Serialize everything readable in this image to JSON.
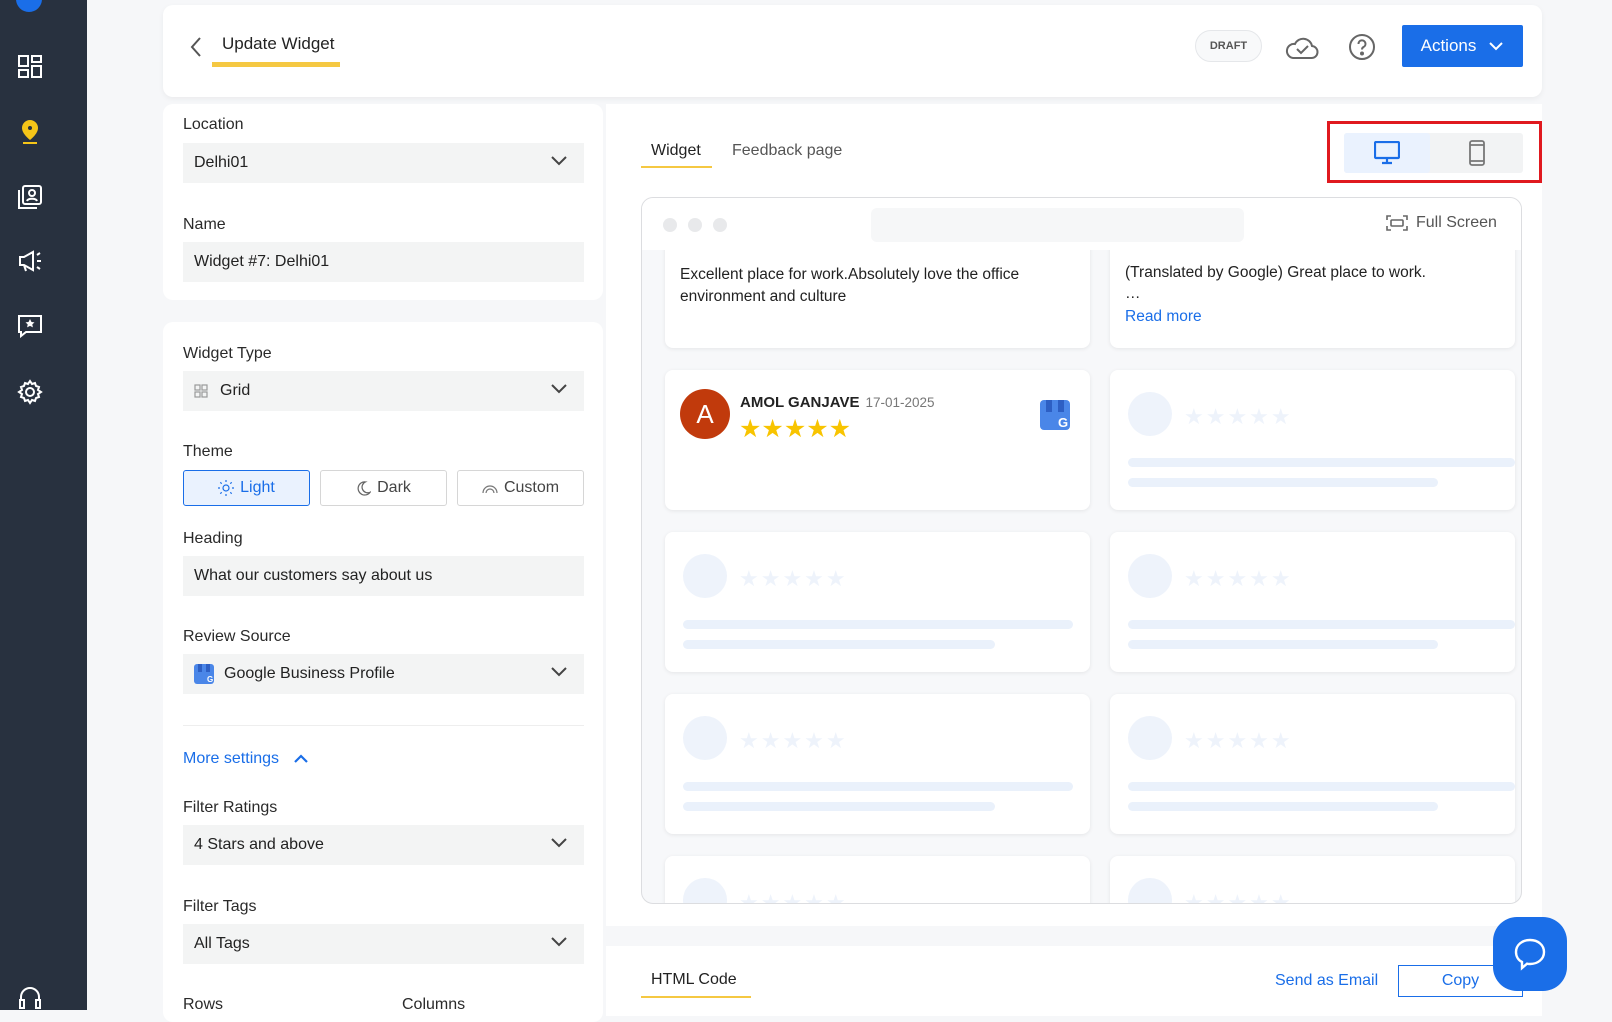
{
  "sidebar": {
    "items": [
      {
        "icon": "logo-icon"
      },
      {
        "icon": "dashboard-icon"
      },
      {
        "icon": "location-pin-icon",
        "active": true
      },
      {
        "icon": "contacts-icon"
      },
      {
        "icon": "megaphone-icon"
      },
      {
        "icon": "review-star-icon"
      },
      {
        "icon": "gear-icon"
      },
      {
        "icon": "headset-icon"
      }
    ]
  },
  "header": {
    "title": "Update Widget",
    "status": "DRAFT",
    "actions_label": "Actions",
    "accent": "#f5c842",
    "primary": "#1a6ee8"
  },
  "form": {
    "location": {
      "label": "Location",
      "value": "Delhi01"
    },
    "name": {
      "label": "Name",
      "value": "Widget #7: Delhi01"
    },
    "widget_type": {
      "label": "Widget Type",
      "value": "Grid"
    },
    "theme": {
      "label": "Theme",
      "options": [
        "Light",
        "Dark",
        "Custom"
      ],
      "selected": "Light"
    },
    "heading": {
      "label": "Heading",
      "value": "What our customers say about us"
    },
    "review_source": {
      "label": "Review Source",
      "value": "Google Business Profile"
    },
    "more_settings": "More settings",
    "filter_ratings": {
      "label": "Filter Ratings",
      "value": "4 Stars and above"
    },
    "filter_tags": {
      "label": "Filter Tags",
      "value": "All Tags"
    },
    "rows_label": "Rows",
    "columns_label": "Columns"
  },
  "preview": {
    "tabs": [
      "Widget",
      "Feedback page"
    ],
    "active_tab": "Widget",
    "device": "desktop",
    "full_screen": "Full Screen",
    "reviews": [
      {
        "text": "Excellent place for work.Absolutely love the office environment and culture"
      },
      {
        "text": "(Translated by Google) Great place to work.",
        "ellipsis": "…",
        "read_more": "Read more"
      },
      {
        "initial": "A",
        "name": "AMOL GANJAVE",
        "date": "17-01-2025",
        "rating": 5,
        "stars": "★★★★★"
      }
    ],
    "skeleton_stars": "★★★★★"
  },
  "code": {
    "tab": "HTML Code",
    "send_email": "Send as Email",
    "copy": "Copy"
  }
}
